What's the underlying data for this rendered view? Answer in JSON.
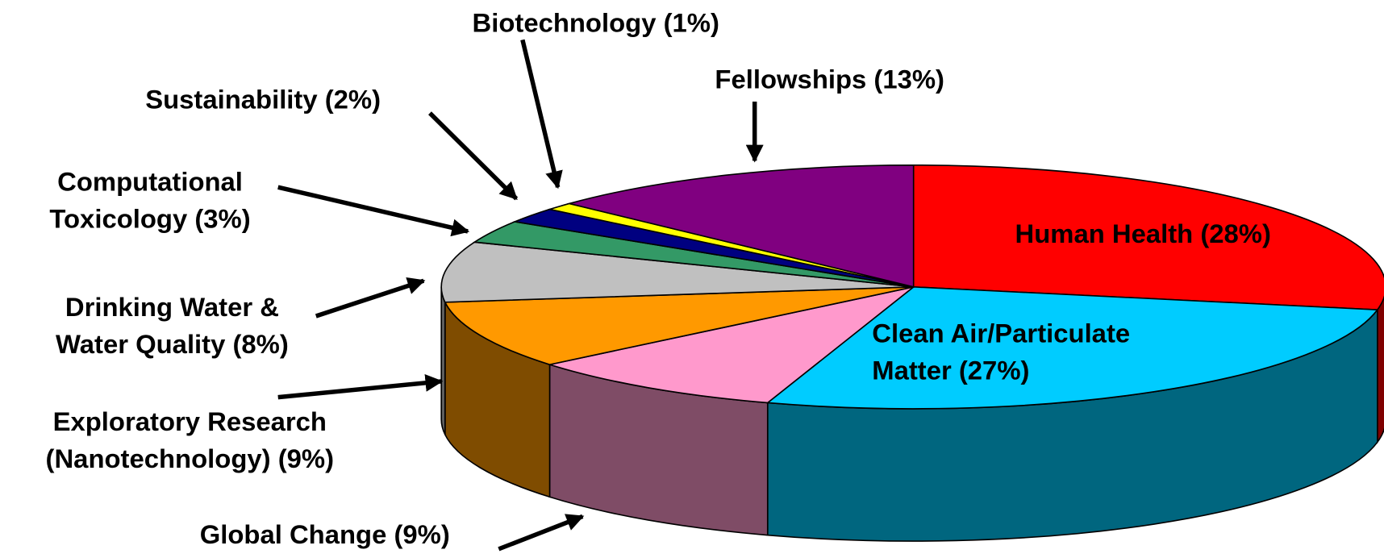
{
  "chart_data": {
    "type": "pie",
    "three_d": true,
    "labels": [
      [
        "Human Health (28%)"
      ],
      [
        "Clean Air/Particulate",
        "Matter (27%)"
      ],
      [
        "Global Change (9%)"
      ],
      [
        "Exploratory Research",
        "(Nanotechnology) (9%)"
      ],
      [
        "Drinking Water &",
        "Water Quality (8%)"
      ],
      [
        "Computational",
        "Toxicology (3%)"
      ],
      [
        "Sustainability (2%)"
      ],
      [
        "Biotechnology (1%)"
      ],
      [
        "Fellowships (13%)"
      ]
    ],
    "values": [
      28,
      27,
      9,
      9,
      8,
      3,
      2,
      1,
      13
    ],
    "colors": [
      "#ff0000",
      "#00ccff",
      "#ff99cc",
      "#ff9900",
      "#c0c0c0",
      "#339966",
      "#000080",
      "#ffff00",
      "#800080"
    ]
  }
}
